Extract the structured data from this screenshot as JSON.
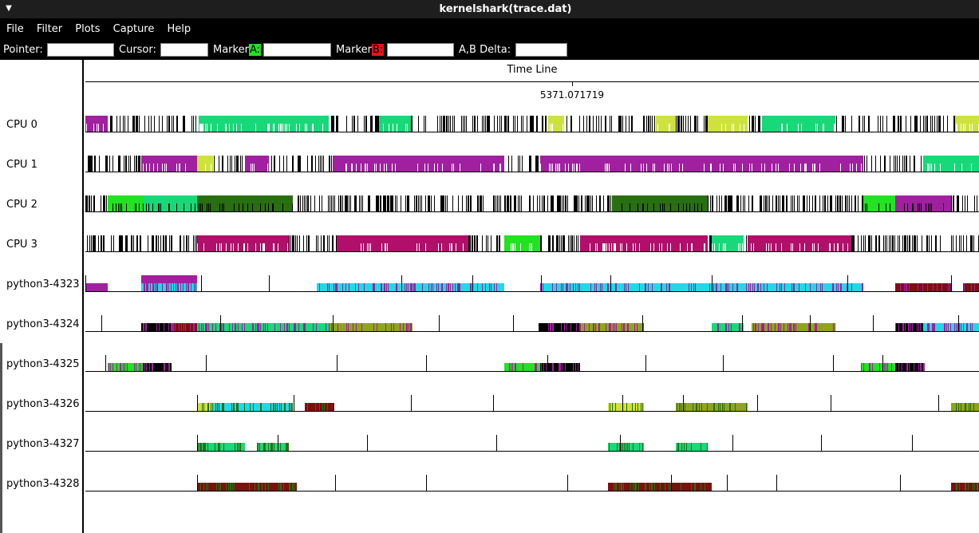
{
  "window": {
    "title": "kernelshark(trace.dat)",
    "menu_icon": "triangle-down-icon"
  },
  "menubar": {
    "items": [
      "File",
      "Filter",
      "Plots",
      "Capture",
      "Help"
    ]
  },
  "infobar": {
    "pointer_label": "Pointer:",
    "pointer_value": "",
    "cursor_label": "Cursor:",
    "cursor_value": "",
    "marker_a_prefix": "Marker",
    "marker_a_letter": "A:",
    "marker_a_value": "",
    "marker_b_prefix": "Marker",
    "marker_b_letter": "B:",
    "marker_b_value": "",
    "delta_label": "A,B Delta:",
    "delta_value": "",
    "marker_a_color": "#22e222",
    "marker_b_color": "#e81414"
  },
  "timeline": {
    "title": "Time Line",
    "tick_value": "5371.071719"
  },
  "plots": [
    {
      "label": "CPU 0"
    },
    {
      "label": "CPU 1"
    },
    {
      "label": "CPU 2"
    },
    {
      "label": "CPU 3"
    },
    {
      "label": "python3-4323"
    },
    {
      "label": "python3-4324"
    },
    {
      "label": "python3-4325"
    },
    {
      "label": "python3-4326"
    },
    {
      "label": "python3-4327"
    },
    {
      "label": "python3-4328"
    }
  ],
  "colors": {
    "green": "#18d879",
    "magenta": "#a020a0",
    "lime": "#cde23c",
    "bright_green": "#22e222",
    "dark_green": "#2a6e12",
    "crimson": "#b0106a",
    "cyan": "#22d8e8",
    "olive": "#8fa41e",
    "maroon": "#7a1010",
    "black": "#000000"
  }
}
